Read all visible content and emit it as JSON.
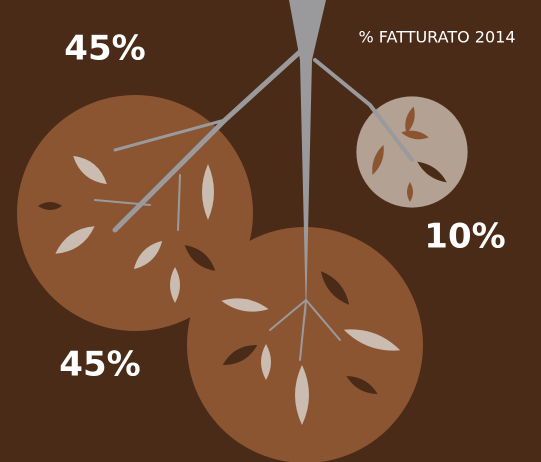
{
  "chart_data": {
    "type": "bubble",
    "title": "% FATTURATO 2014",
    "values": [
      45,
      45,
      10
    ],
    "value_labels": [
      "45%",
      "45%",
      "10%"
    ],
    "colors": [
      "#8b5532",
      "#8b5532",
      "#b3a194"
    ]
  }
}
